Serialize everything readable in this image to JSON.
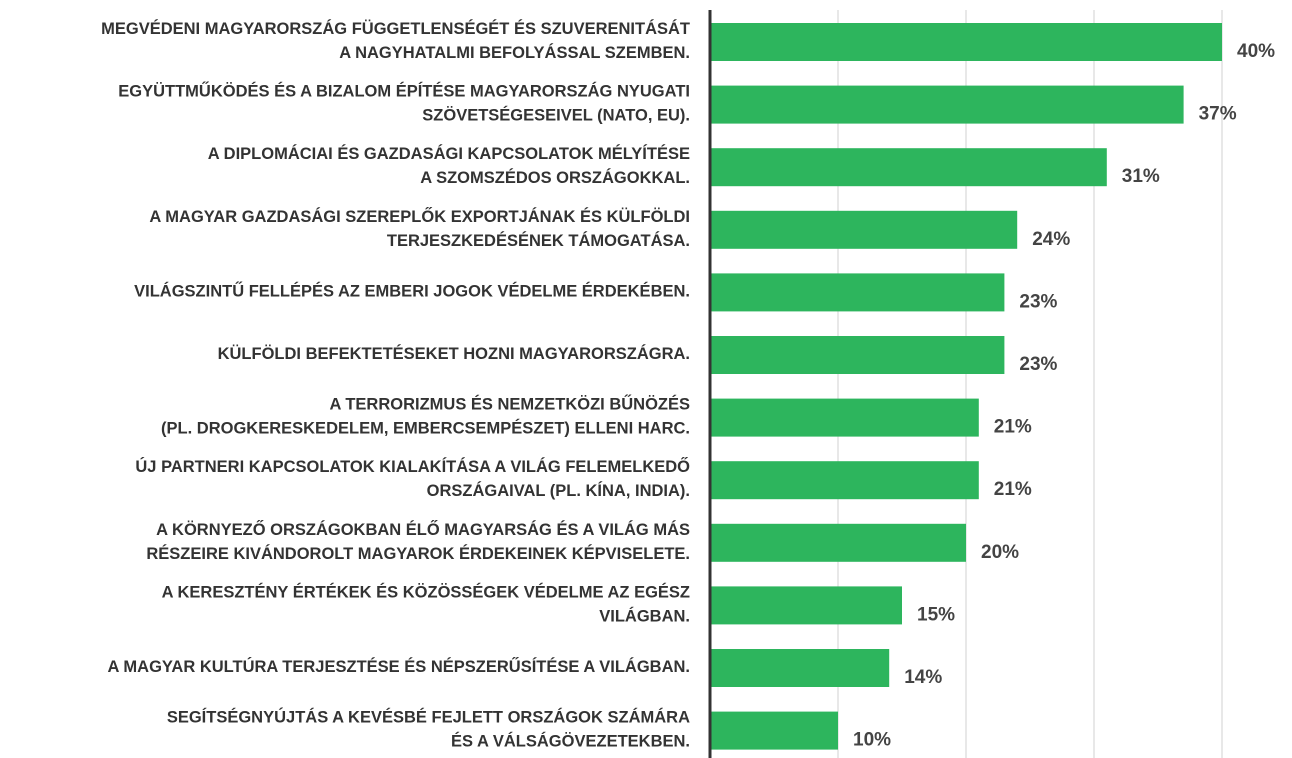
{
  "chart_data": {
    "type": "bar",
    "orientation": "horizontal",
    "categories": [
      "MEGVÉDENI MAGYARORSZÁG FÜGGETLENSÉGÉT ÉS SZUVERENITÁSÁT\nA NAGYHATALMI BEFOLYÁSSAL SZEMBEN.",
      "EGYÜTTMŰKÖDÉS ÉS A BIZALOM ÉPÍTÉSE MAGYARORSZÁG NYUGATI\nSZÖVETSÉGESEIVEL (NATO, EU).",
      "A DIPLOMÁCIAI ÉS GAZDASÁGI KAPCSOLATOK MÉLYÍTÉSE\nA SZOMSZÉDOS ORSZÁGOKKAL.",
      "A MAGYAR GAZDASÁGI SZEREPLŐK EXPORTJÁNAK ÉS KÜLFÖLDI\nTERJESZKEDÉSÉNEK TÁMOGATÁSA.",
      "VILÁGSZINTŰ FELLÉPÉS AZ EMBERI JOGOK VÉDELME ÉRDEKÉBEN.",
      "KÜLFÖLDI BEFEKTETÉSEKET HOZNI MAGYARORSZÁGRA.",
      "A TERRORIZMUS ÉS NEMZETKÖZI BŰNÖZÉS\n(PL. DROGKERESKEDELEM, EMBERCSEMPÉSZET) ELLENI HARC.",
      "ÚJ PARTNERI KAPCSOLATOK KIALAKÍTÁSA A VILÁG FELEMELKEDŐ\nORSZÁGAIVAL (PL. KÍNA, INDIA).",
      "A KÖRNYEZŐ ORSZÁGOKBAN ÉLŐ MAGYARSÁG ÉS A VILÁG MÁS\nRÉSZEIRE KIVÁNDOROLT MAGYAROK ÉRDEKEINEK KÉPVISELETE.",
      "A KERESZTÉNY ÉRTÉKEK ÉS KÖZÖSSÉGEK VÉDELME AZ EGÉSZ\nVILÁGBAN.",
      "A MAGYAR KULTÚRA TERJESZTÉSE ÉS NÉPSZERŰSÍTÉSE A VILÁGBAN.",
      "SEGÍTSÉGNYÚJTÁS A KEVÉSBÉ FEJLETT ORSZÁGOK SZÁMÁRA\nÉS A VÁLSÁGÖVEZETEKBEN."
    ],
    "values": [
      40,
      37,
      31,
      24,
      23,
      23,
      21,
      21,
      20,
      15,
      14,
      10
    ],
    "value_labels": [
      "40%",
      "37%",
      "31%",
      "24%",
      "23%",
      "23%",
      "21%",
      "21%",
      "20%",
      "15%",
      "14%",
      "10%"
    ],
    "color": "#2db55d",
    "xlim": [
      0,
      40
    ],
    "xticks": [
      0,
      10,
      20,
      30,
      40
    ],
    "grid": true
  }
}
